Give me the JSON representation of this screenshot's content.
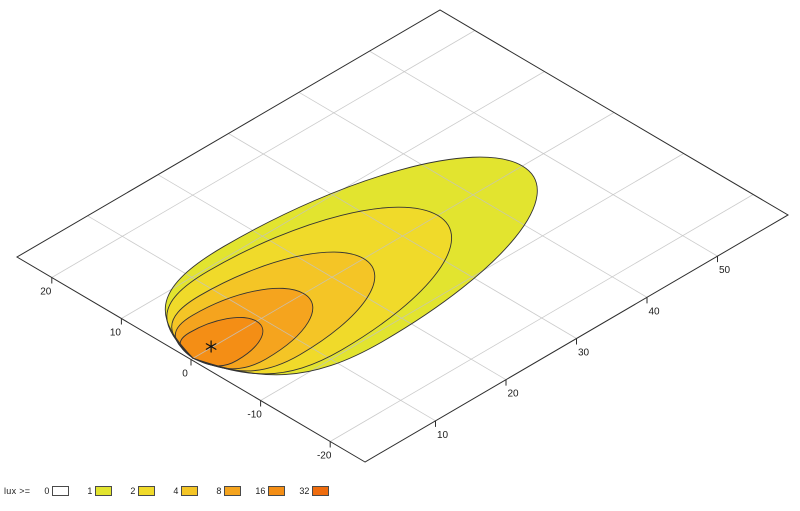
{
  "chart_data": {
    "type": "contour",
    "title": "",
    "legend_label": "lux >=",
    "legend_position": "bottom-left",
    "grid": true,
    "levels": [
      {
        "value": 0,
        "color": "#ffffff"
      },
      {
        "value": 1,
        "color": "#e2e42f"
      },
      {
        "value": 2,
        "color": "#f0da2a"
      },
      {
        "value": 4,
        "color": "#f4c526"
      },
      {
        "value": 8,
        "color": "#f5a41e"
      },
      {
        "value": 16,
        "color": "#f48e15"
      },
      {
        "value": 32,
        "color": "#ef6c0e"
      }
    ],
    "x_axis": {
      "range": [
        0,
        60
      ],
      "ticks": [
        10,
        20,
        30,
        40,
        50
      ]
    },
    "y_axis": {
      "range": [
        -25,
        25
      ],
      "ticks": [
        20,
        10,
        0,
        -10,
        -20
      ]
    },
    "source_marker": {
      "x": 3,
      "y": 0.15,
      "symbol": "asterisk"
    },
    "contours": [
      {
        "level": 1,
        "reach": 47.0,
        "half_width": 11.5
      },
      {
        "level": 2,
        "reach": 35.0,
        "half_width": 9.6
      },
      {
        "level": 4,
        "reach": 24.5,
        "half_width": 7.2
      },
      {
        "level": 8,
        "reach": 16.0,
        "half_width": 5.3
      },
      {
        "level": 16,
        "reach": 9.3,
        "half_width": 3.4
      }
    ],
    "pinch_point": {
      "x": 0.3,
      "y": 0
    },
    "colors": {
      "background": "#ffffff",
      "plot_border": "#2e2e2e",
      "contour_line": "#333333",
      "grid_line": "#c3c3c3",
      "text": "#1c1c1c",
      "marker": "#111111"
    }
  }
}
